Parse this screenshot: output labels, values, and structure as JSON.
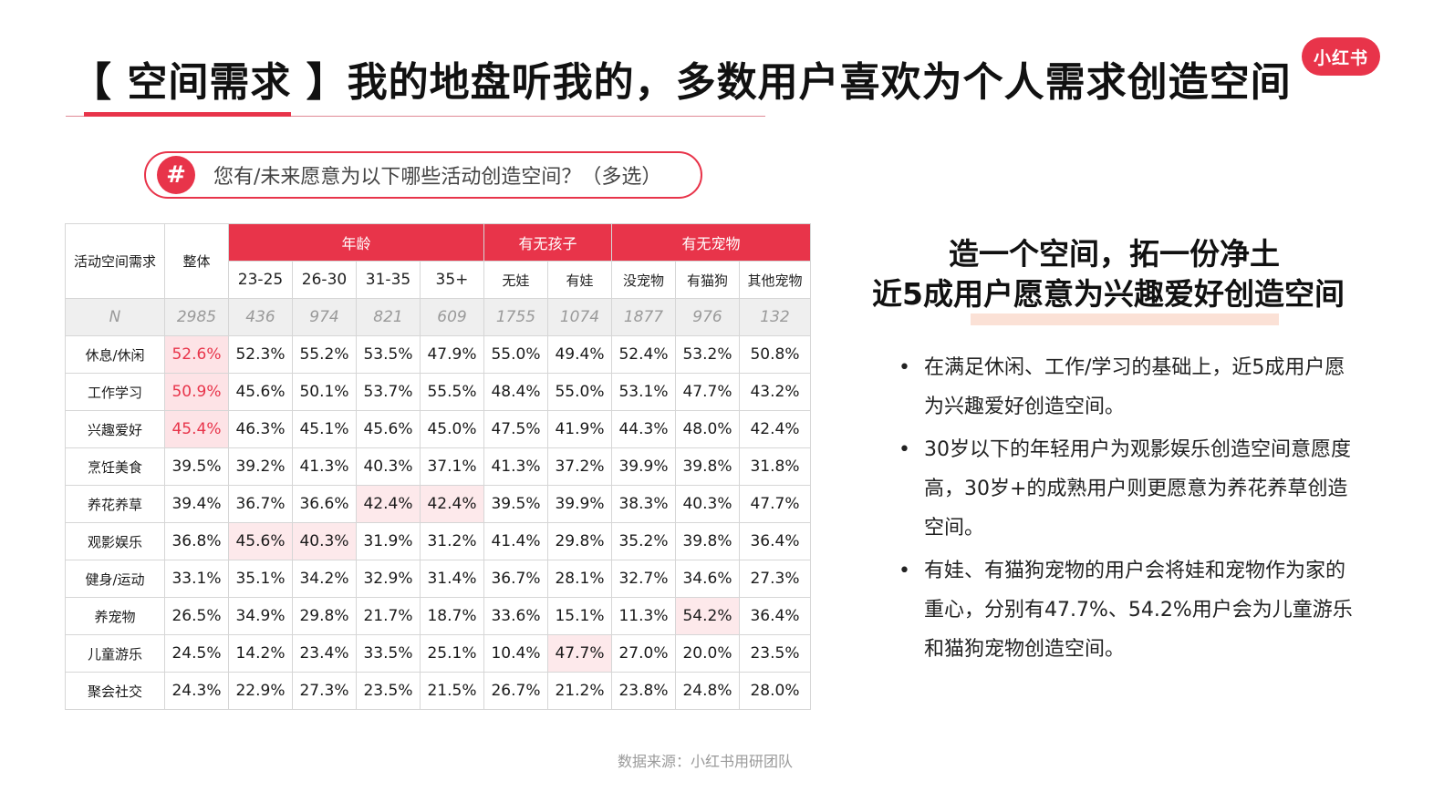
{
  "header": {
    "title": "【 空间需求 】我的地盘听我的，多数用户喜欢为个人需求创造空间",
    "logo_text": "小红书",
    "accent_color": "#e8344a"
  },
  "question": {
    "icon": "#",
    "text": "您有/未来愿意为以下哪些活动创造空间？（多选）"
  },
  "table": {
    "stub_header": "活动空间需求",
    "overall_header": "整体",
    "groups": [
      "年龄",
      "有无孩子",
      "有无宠物"
    ],
    "subheaders": [
      "23-25",
      "26-30",
      "31-35",
      "35+",
      "无娃",
      "有娃",
      "没宠物",
      "有猫狗",
      "其他宠物"
    ],
    "n_row": [
      "N",
      "2985",
      "436",
      "974",
      "821",
      "609",
      "1755",
      "1074",
      "1877",
      "976",
      "132"
    ],
    "rows": [
      [
        "休息/休闲",
        "52.6%",
        "52.3%",
        "55.2%",
        "53.5%",
        "47.9%",
        "55.0%",
        "49.4%",
        "52.4%",
        "53.2%",
        "50.8%"
      ],
      [
        "工作学习",
        "50.9%",
        "45.6%",
        "50.1%",
        "53.7%",
        "55.5%",
        "48.4%",
        "55.0%",
        "53.1%",
        "47.7%",
        "43.2%"
      ],
      [
        "兴趣爱好",
        "45.4%",
        "46.3%",
        "45.1%",
        "45.6%",
        "45.0%",
        "47.5%",
        "41.9%",
        "44.3%",
        "48.0%",
        "42.4%"
      ],
      [
        "烹饪美食",
        "39.5%",
        "39.2%",
        "41.3%",
        "40.3%",
        "37.1%",
        "41.3%",
        "37.2%",
        "39.9%",
        "39.8%",
        "31.8%"
      ],
      [
        "养花养草",
        "39.4%",
        "36.7%",
        "36.6%",
        "42.4%",
        "42.4%",
        "39.5%",
        "39.9%",
        "38.3%",
        "40.3%",
        "47.7%"
      ],
      [
        "观影娱乐",
        "36.8%",
        "45.6%",
        "40.3%",
        "31.9%",
        "31.2%",
        "41.4%",
        "29.8%",
        "35.2%",
        "39.8%",
        "36.4%"
      ],
      [
        "健身/运动",
        "33.1%",
        "35.1%",
        "34.2%",
        "32.9%",
        "31.4%",
        "36.7%",
        "28.1%",
        "32.7%",
        "34.6%",
        "27.3%"
      ],
      [
        "养宠物",
        "26.5%",
        "34.9%",
        "29.8%",
        "21.7%",
        "18.7%",
        "33.6%",
        "15.1%",
        "11.3%",
        "54.2%",
        "36.4%"
      ],
      [
        "儿童游乐",
        "24.5%",
        "14.2%",
        "23.4%",
        "33.5%",
        "25.1%",
        "10.4%",
        "47.7%",
        "27.0%",
        "20.0%",
        "23.5%"
      ],
      [
        "聚会社交",
        "24.3%",
        "22.9%",
        "27.3%",
        "23.5%",
        "21.5%",
        "26.7%",
        "21.2%",
        "23.8%",
        "24.8%",
        "28.0%"
      ]
    ]
  },
  "right": {
    "headline_1": "造一个空间，拓一份净土",
    "headline_2": "近5成用户愿意为兴趣爱好创造空间",
    "bullets": [
      "在满足休闲、工作/学习的基础上，近5成用户愿为兴趣爱好创造空间。",
      "30岁以下的年轻用户为观影娱乐创造空间意愿度高，30岁+的成熟用户则更愿意为养花养草创造空间。",
      "有娃、有猫狗宠物的用户会将娃和宠物作为家的重心，分别有47.7%、54.2%用户会为儿童游乐和猫狗宠物创造空间。"
    ]
  },
  "footer": {
    "source": "数据来源：小红书用研团队"
  }
}
